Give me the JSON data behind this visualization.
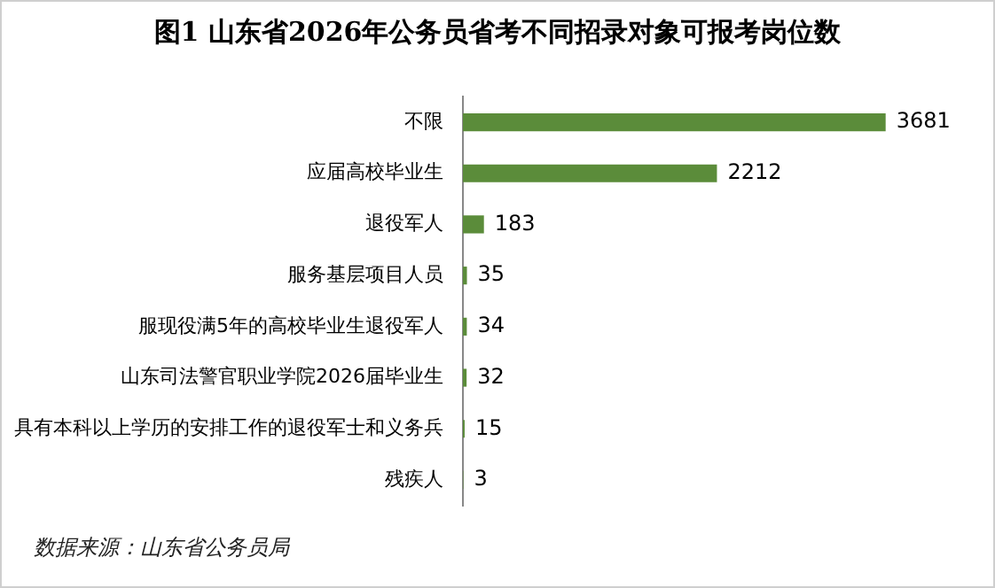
{
  "chart_data": {
    "type": "bar",
    "orientation": "horizontal",
    "title": "图1 山东省2026年公务员省考不同招录对象可报考岗位数",
    "categories": [
      "不限",
      "应届高校毕业生",
      "退役军人",
      "服务基层项目人员",
      "服现役满5年的高校毕业生退役军人",
      "山东司法警官职业学院2026届毕业生",
      "具有本科以上学历的安排工作的退役军士和义务兵",
      "残疾人"
    ],
    "values": [
      3681,
      2212,
      183,
      35,
      34,
      32,
      15,
      3
    ],
    "color": "#5b8c3a",
    "data_labels": true,
    "legend": false,
    "annotations": [
      "数据来源：山东省公务员局"
    ]
  }
}
